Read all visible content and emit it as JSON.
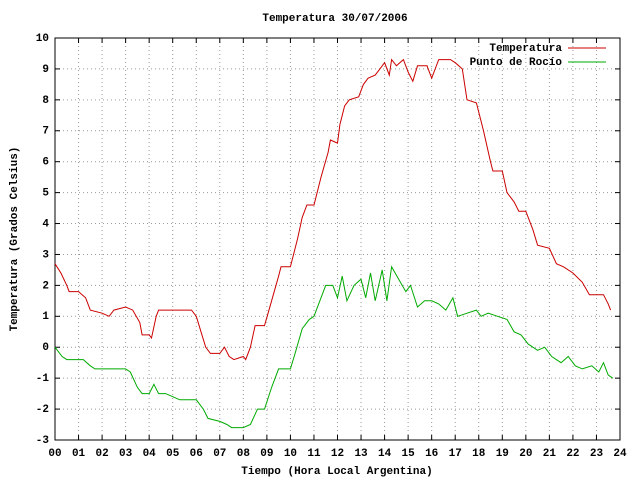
{
  "chart_data": {
    "type": "line",
    "title": "Temperatura 30/07/2006",
    "x_label": "Tiempo (Hora Local Argentina)",
    "y_label": "Temperatura (Grados Celsius)",
    "xlim": [
      0,
      24
    ],
    "ylim": [
      -3,
      10
    ],
    "xticks": [
      {
        "value": 0,
        "label": "00"
      },
      {
        "value": 1,
        "label": "01"
      },
      {
        "value": 2,
        "label": "02"
      },
      {
        "value": 3,
        "label": "03"
      },
      {
        "value": 4,
        "label": "04"
      },
      {
        "value": 5,
        "label": "05"
      },
      {
        "value": 6,
        "label": "06"
      },
      {
        "value": 7,
        "label": "07"
      },
      {
        "value": 8,
        "label": "08"
      },
      {
        "value": 9,
        "label": "09"
      },
      10,
      11,
      12,
      13,
      14,
      15,
      16,
      17,
      18,
      19,
      20,
      21,
      22,
      23,
      24
    ],
    "yticks": [
      -3,
      -2,
      -1,
      0,
      1,
      2,
      3,
      4,
      5,
      6,
      7,
      8,
      9,
      10
    ],
    "grid": true,
    "legend": "top-right",
    "series": [
      {
        "name": "Temperatura",
        "color": "#cc0000",
        "x": [
          0,
          0.25,
          0.5,
          0.6,
          1,
          1.3,
          1.5,
          2,
          2.3,
          2.5,
          3,
          3.3,
          3.6,
          3.7,
          4,
          4.1,
          4.3,
          4.4,
          5,
          5.5,
          5.8,
          6,
          6.2,
          6.4,
          6.6,
          7,
          7.2,
          7.4,
          7.6,
          8,
          8.1,
          8.3,
          8.5,
          8.9,
          9.2,
          9.5,
          9.6,
          10,
          10.3,
          10.5,
          10.7,
          11,
          11.3,
          11.6,
          11.7,
          12,
          12.1,
          12.3,
          12.5,
          12.9,
          13.1,
          13.3,
          13.6,
          13.8,
          14,
          14.2,
          14.3,
          14.5,
          14.8,
          15,
          15.2,
          15.4,
          15.8,
          16,
          16.3,
          16.8,
          17,
          17.3,
          17.5,
          17.9,
          18.2,
          18.5,
          18.6,
          19,
          19.2,
          19.5,
          19.7,
          20,
          20.3,
          20.5,
          21,
          21.3,
          21.6,
          22,
          22.4,
          22.7,
          23.3,
          23.5,
          23.6
        ],
        "values": [
          2.7,
          2.4,
          2.0,
          1.8,
          1.8,
          1.6,
          1.2,
          1.1,
          1.0,
          1.2,
          1.3,
          1.2,
          0.8,
          0.4,
          0.4,
          0.3,
          1.0,
          1.2,
          1.2,
          1.2,
          1.2,
          1.0,
          0.5,
          0.0,
          -0.2,
          -0.2,
          0.0,
          -0.3,
          -0.4,
          -0.3,
          -0.4,
          0.0,
          0.7,
          0.7,
          1.5,
          2.3,
          2.6,
          2.6,
          3.5,
          4.2,
          4.6,
          4.6,
          5.5,
          6.3,
          6.7,
          6.6,
          7.2,
          7.8,
          8.0,
          8.1,
          8.5,
          8.7,
          8.8,
          9.0,
          9.2,
          8.8,
          9.3,
          9.1,
          9.3,
          8.9,
          8.6,
          9.1,
          9.1,
          8.7,
          9.3,
          9.3,
          9.2,
          9.0,
          8.0,
          7.9,
          7.0,
          6.0,
          5.7,
          5.7,
          5.0,
          4.7,
          4.4,
          4.4,
          3.8,
          3.3,
          3.2,
          2.7,
          2.6,
          2.4,
          2.1,
          1.7,
          1.7,
          1.4,
          1.2
        ]
      },
      {
        "name": "Punto de Rocío",
        "color": "#00aa00",
        "x": [
          0,
          0.3,
          0.5,
          1.2,
          1.5,
          1.7,
          2.3,
          2.5,
          3,
          3.2,
          3.5,
          3.7,
          4,
          4.2,
          4.4,
          4.7,
          5,
          5.3,
          6,
          6.3,
          6.5,
          7,
          7.3,
          7.5,
          8,
          8.3,
          8.6,
          8.9,
          9.2,
          9.5,
          10,
          10.2,
          10.5,
          10.8,
          11,
          11.3,
          11.5,
          11.8,
          12,
          12.2,
          12.4,
          12.7,
          13,
          13.2,
          13.4,
          13.6,
          13.9,
          14.1,
          14.3,
          14.6,
          14.9,
          15.1,
          15.4,
          15.7,
          16,
          16.3,
          16.6,
          16.9,
          17.1,
          17.5,
          17.9,
          18.1,
          18.4,
          18.8,
          19.2,
          19.5,
          19.8,
          20.1,
          20.5,
          20.8,
          21.1,
          21.5,
          21.8,
          22.1,
          22.4,
          22.8,
          23.1,
          23.3,
          23.5,
          23.7
        ],
        "values": [
          0.0,
          -0.3,
          -0.4,
          -0.4,
          -0.6,
          -0.7,
          -0.7,
          -0.7,
          -0.7,
          -0.8,
          -1.3,
          -1.5,
          -1.5,
          -1.2,
          -1.5,
          -1.5,
          -1.6,
          -1.7,
          -1.7,
          -2.0,
          -2.3,
          -2.4,
          -2.5,
          -2.6,
          -2.6,
          -2.5,
          -2.0,
          -2.0,
          -1.3,
          -0.7,
          -0.7,
          -0.2,
          0.6,
          0.9,
          1.0,
          1.6,
          2.0,
          2.0,
          1.6,
          2.3,
          1.5,
          2.0,
          2.2,
          1.6,
          2.4,
          1.5,
          2.5,
          1.5,
          2.6,
          2.2,
          1.8,
          2.0,
          1.3,
          1.5,
          1.5,
          1.4,
          1.2,
          1.6,
          1.0,
          1.1,
          1.2,
          1.0,
          1.1,
          1.0,
          0.9,
          0.5,
          0.4,
          0.1,
          -0.1,
          0.0,
          -0.3,
          -0.5,
          -0.3,
          -0.6,
          -0.7,
          -0.6,
          -0.8,
          -0.5,
          -0.9,
          -1.0
        ]
      }
    ]
  }
}
